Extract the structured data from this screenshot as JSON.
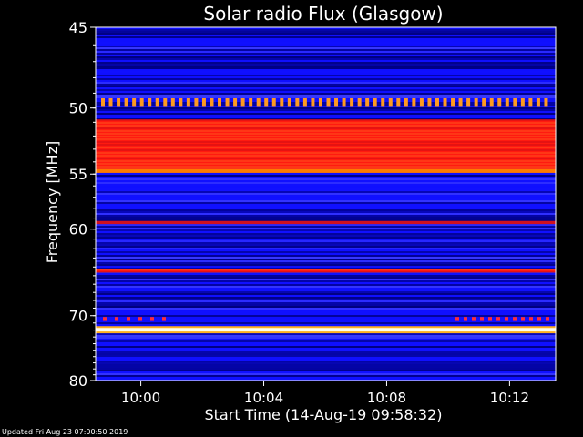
{
  "footer": "Updated Fri Aug 23 07:00:50 2019",
  "chart_data": {
    "type": "heatmap",
    "title": "Solar radio Flux (Glasgow)",
    "xlabel": "Start Time (14-Aug-19 09:58:32)",
    "ylabel": "Frequency [MHz]",
    "x_ticks": [
      {
        "label": "10:00",
        "minutes": 1.47
      },
      {
        "label": "10:04",
        "minutes": 5.47
      },
      {
        "label": "10:08",
        "minutes": 9.47
      },
      {
        "label": "10:12",
        "minutes": 13.47
      }
    ],
    "xlim_minutes": [
      0,
      14.97
    ],
    "ylim": [
      45,
      80
    ],
    "y_ticks": [
      45,
      50,
      55,
      60,
      70,
      80
    ],
    "y_scale": "reciprocal",
    "colormap": [
      "#000080",
      "#1010ff",
      "#3838ff",
      "#ff2020",
      "#ff8800",
      "#ffffa0"
    ],
    "emission_bands": [
      {
        "freq_from": 49.4,
        "freq_to": 49.8,
        "level": "dotted-orange"
      },
      {
        "freq_from": 50.8,
        "freq_to": 54.6,
        "level": "red"
      },
      {
        "freq_from": 54.6,
        "freq_to": 54.9,
        "level": "orange"
      },
      {
        "freq_from": 59.2,
        "freq_to": 59.5,
        "level": "red-thin"
      },
      {
        "freq_from": 64.2,
        "freq_to": 64.6,
        "level": "red"
      },
      {
        "freq_from": 70.3,
        "freq_to": 70.6,
        "level": "dotted-red"
      },
      {
        "freq_from": 71.7,
        "freq_to": 72.2,
        "level": "white"
      }
    ]
  }
}
